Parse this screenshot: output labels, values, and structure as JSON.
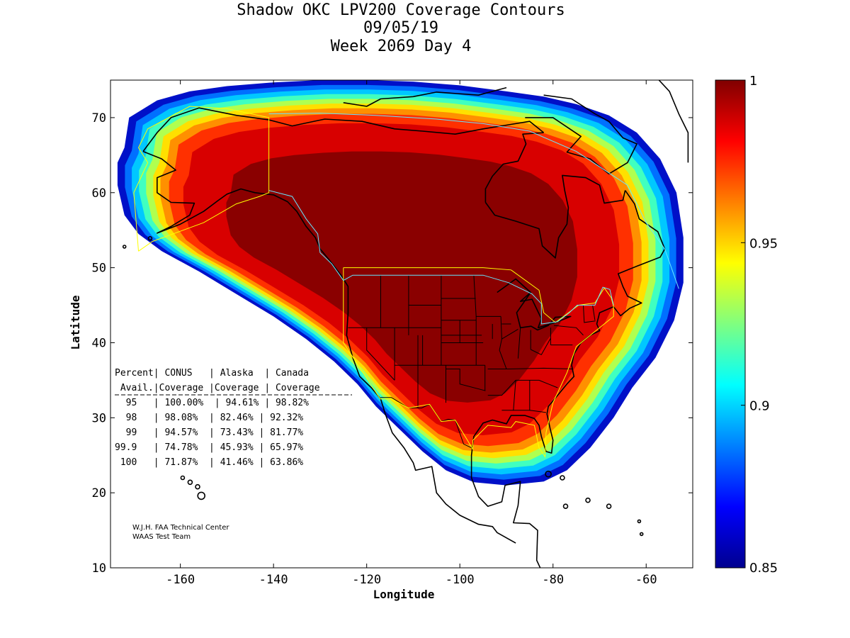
{
  "figure": {
    "title_lines": [
      "Shadow OKC LPV200 Coverage Contours",
      "09/05/19",
      "Week 2069 Day 4"
    ],
    "xlabel": "Longitude",
    "ylabel": "Latitude",
    "credits": [
      "W.J.H. FAA Technical Center",
      "WAAS Test Team"
    ]
  },
  "chart_data": {
    "type": "heatmap",
    "title": "Shadow OKC LPV200 Coverage Contours",
    "xlabel": "Longitude",
    "ylabel": "Latitude",
    "xlim": [
      -175,
      -50
    ],
    "ylim": [
      10,
      75
    ],
    "x_ticks": [
      -160,
      -140,
      -120,
      -100,
      -80,
      -60
    ],
    "x_tick_labels": [
      "-160",
      "-140",
      "-120",
      "-100",
      "-80",
      "-60"
    ],
    "y_ticks": [
      10,
      20,
      30,
      40,
      50,
      60,
      70
    ],
    "y_tick_labels": [
      "10",
      "20",
      "30",
      "40",
      "50",
      "60",
      "70"
    ],
    "colorbar": {
      "range": [
        0.85,
        1
      ],
      "ticks": [
        0.85,
        0.9,
        0.95,
        1
      ],
      "tick_labels": [
        "0.85",
        "0.9",
        "0.95",
        "1"
      ],
      "colormap": "jet"
    },
    "coverage_zones": [
      {
        "level": 0.85,
        "color": "#0010c8"
      },
      {
        "level": 0.87,
        "color": "#0070ff"
      },
      {
        "level": 0.89,
        "color": "#00c8ff"
      },
      {
        "level": 0.91,
        "color": "#40ffc0"
      },
      {
        "level": 0.93,
        "color": "#b0ff50"
      },
      {
        "level": 0.945,
        "color": "#ffe000"
      },
      {
        "level": 0.96,
        "color": "#ff9000"
      },
      {
        "level": 0.975,
        "color": "#ff3000"
      },
      {
        "level": 0.99,
        "color": "#d80000"
      },
      {
        "level": 1.0,
        "color": "#8a0000"
      }
    ],
    "coverage_table": {
      "header_rows": [
        "Percent| CONUS   | Alaska  | Canada",
        " Avail.|Coverage |Coverage | Coverage"
      ],
      "rows": [
        "  95   | 100.00%  | 94.61% | 98.82%",
        "  98   | 98.08%  | 82.46% | 92.32%",
        "  99   | 94.57%  | 73.43% | 81.77%",
        "99.9   | 74.78%  | 45.93% | 65.97%",
        " 100   | 71.87%  | 41.46% | 63.86%"
      ]
    }
  }
}
